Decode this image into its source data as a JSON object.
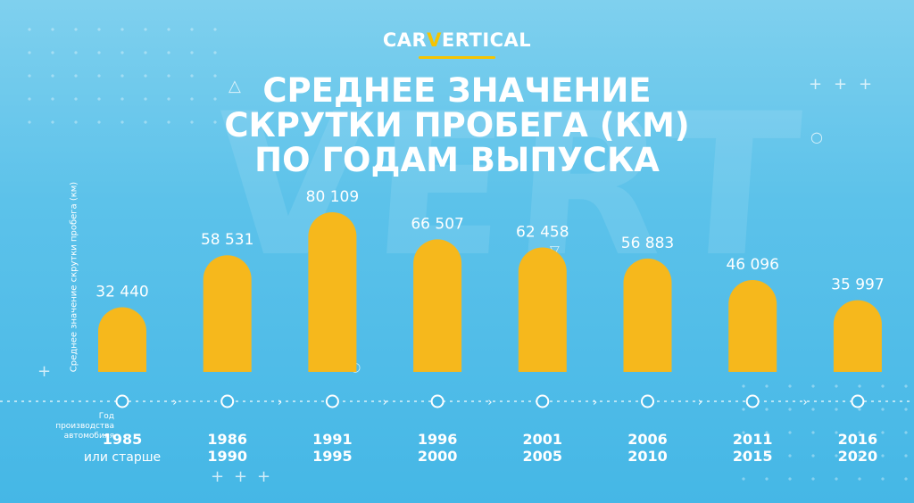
{
  "brand": {
    "logo_prefix": "CAR",
    "logo_v": "V",
    "logo_suffix": "ERTICAL"
  },
  "colors": {
    "bar": "#f6b81c",
    "background": "#5cc2ea",
    "accent": "#f5c400",
    "text": "#ffffff"
  },
  "chart_data": {
    "type": "bar",
    "title_lines": [
      "СРЕДНЕЕ ЗНАЧЕНИЕ",
      "СКРУТКИ ПРОБЕГА (КМ)",
      "ПО ГОДАМ ВЫПУСКА"
    ],
    "ylabel": "Среднее значение скрутки пробега (км)",
    "xlabel": "Год производства автомобиля",
    "categories": [
      [
        "1985",
        "или старше"
      ],
      [
        "1986",
        "1990"
      ],
      [
        "1991",
        "1995"
      ],
      [
        "1996",
        "2000"
      ],
      [
        "2001",
        "2005"
      ],
      [
        "2006",
        "2010"
      ],
      [
        "2011",
        "2015"
      ],
      [
        "2016",
        "2020"
      ]
    ],
    "values": [
      32440,
      58531,
      80109,
      66507,
      62458,
      56883,
      46096,
      35997
    ],
    "value_labels": [
      "32 440",
      "58 531",
      "80 109",
      "66 507",
      "62 458",
      "56 883",
      "46 096",
      "35 997"
    ],
    "ylim": [
      0,
      80109
    ],
    "grid": false,
    "legend": "none"
  }
}
